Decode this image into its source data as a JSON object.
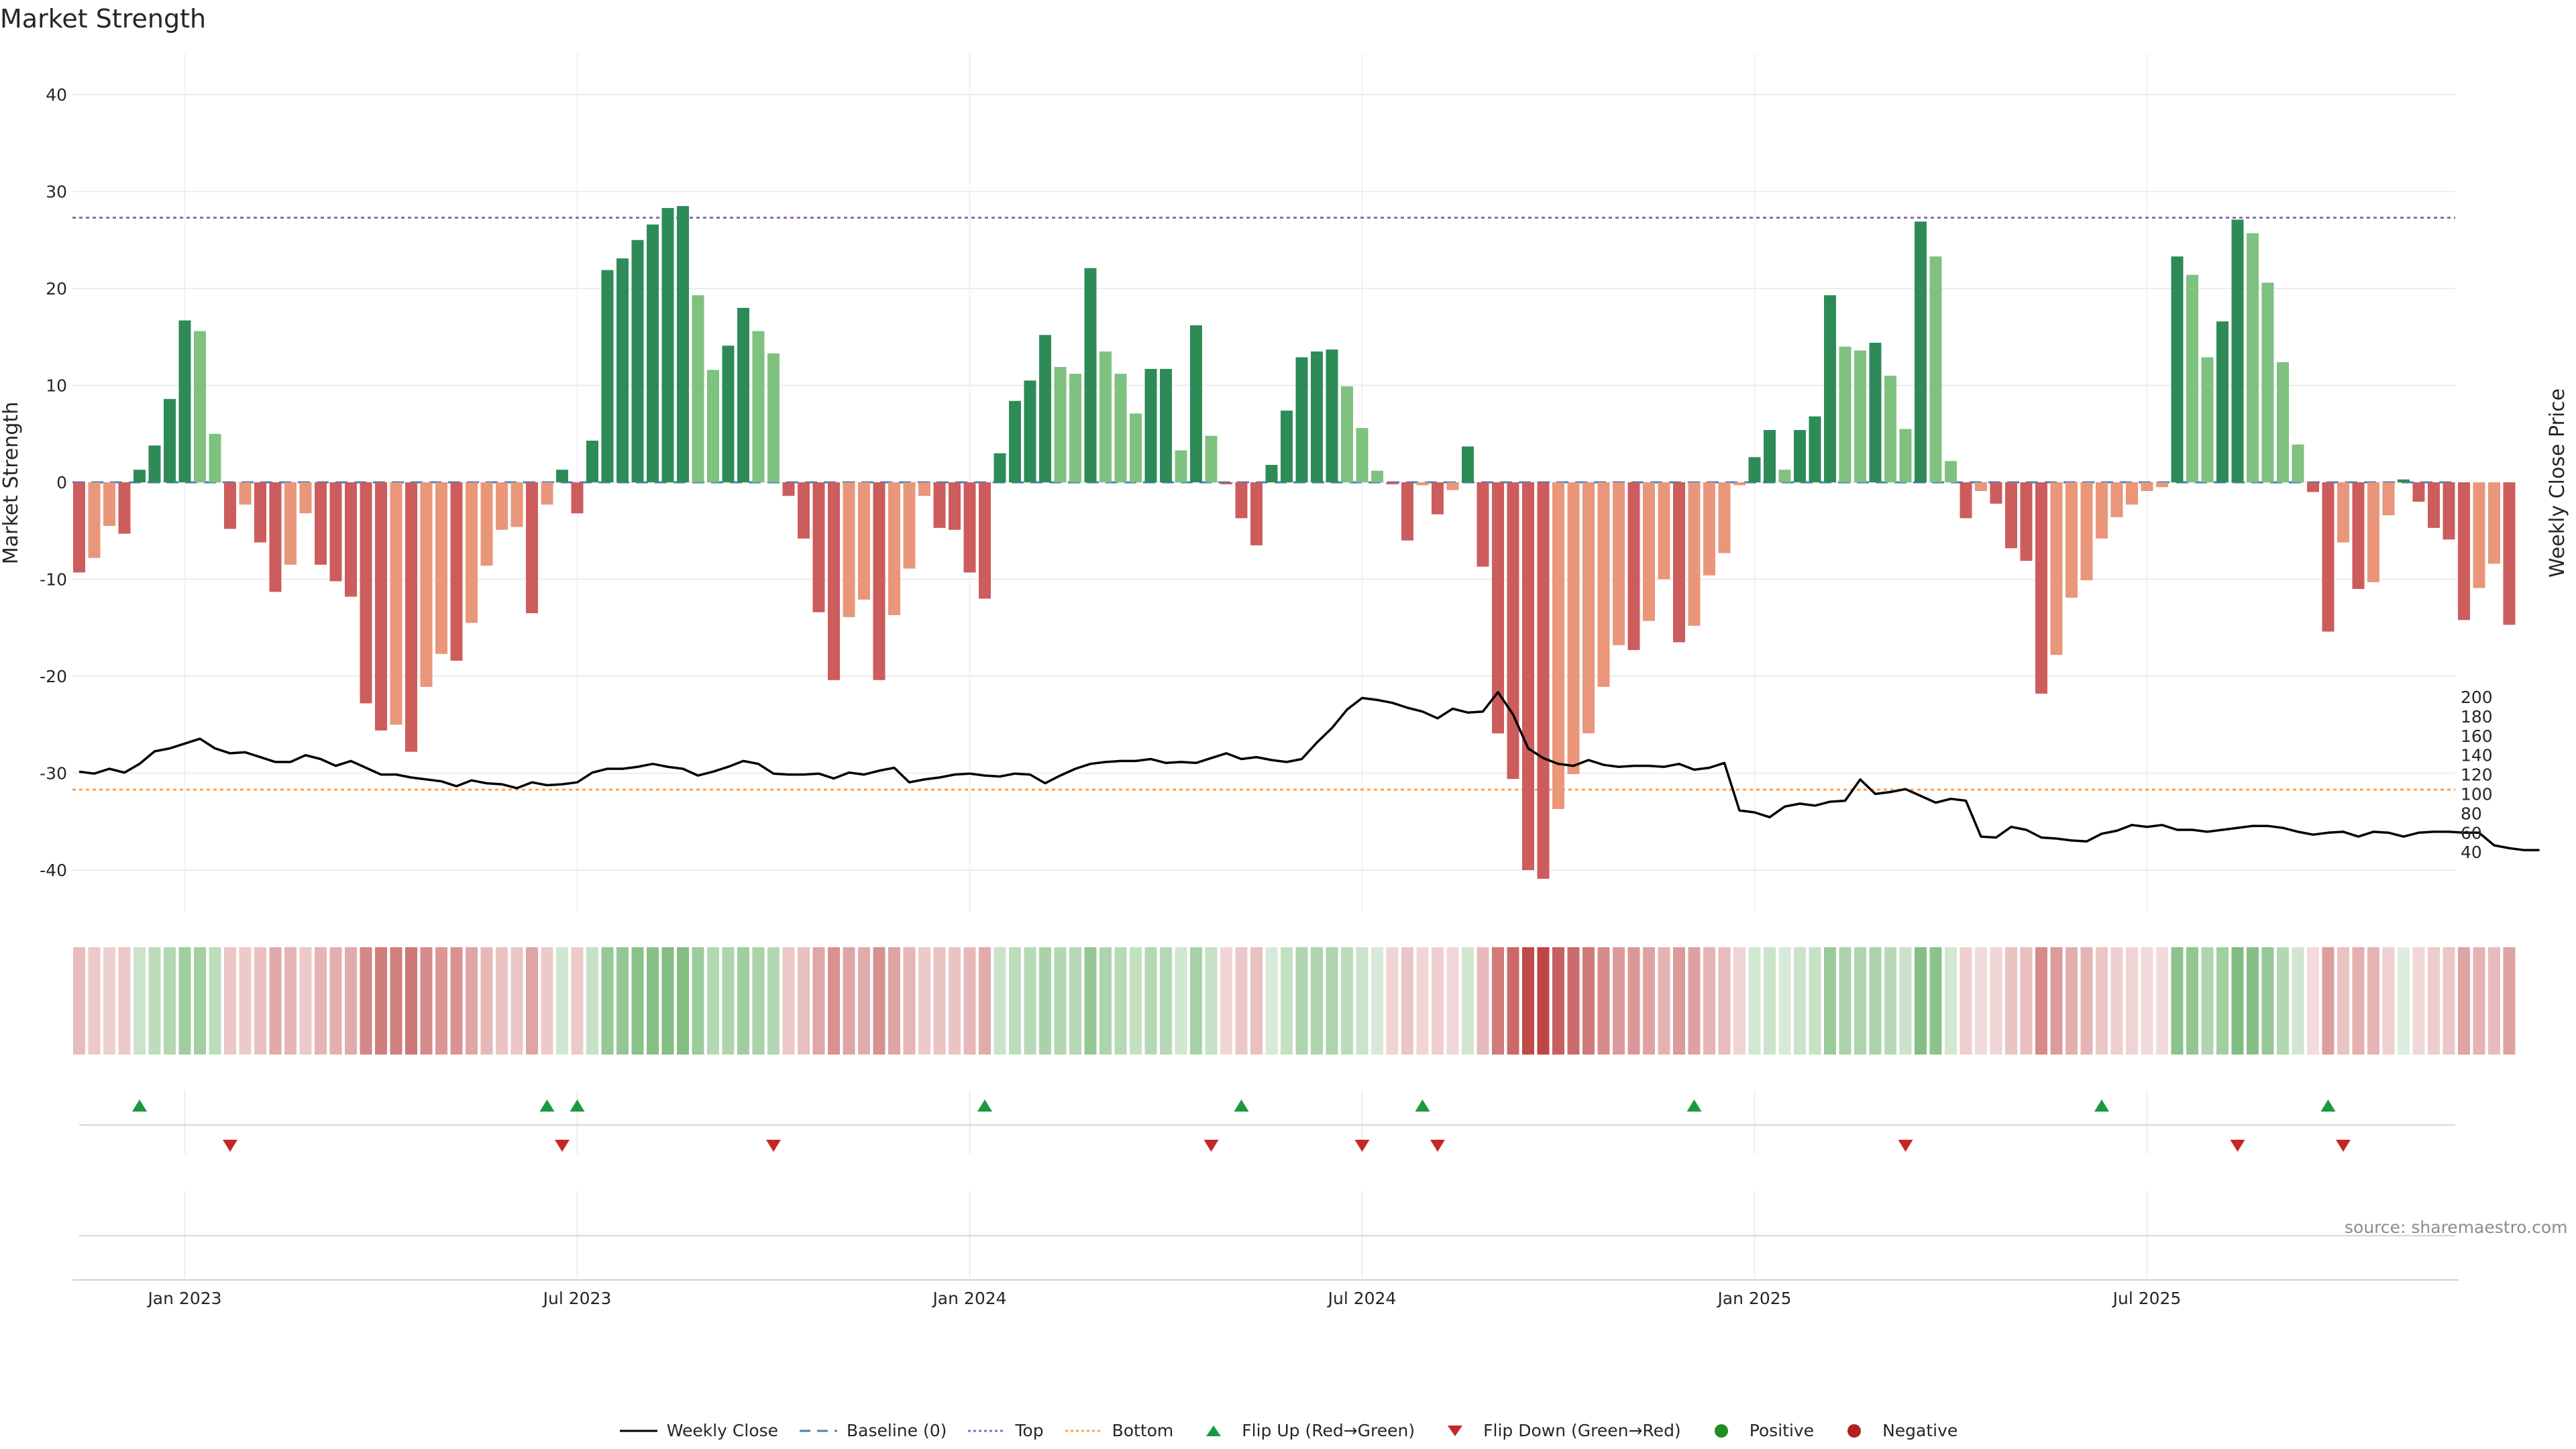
{
  "title": "Market Strength",
  "source": "source: sharemaestro.com",
  "colors": {
    "strong_green": "#2e8b57",
    "light_green": "#7fc17f",
    "strong_red": "#cd5c5c",
    "light_red": "#e9967a",
    "close_line": "#000000",
    "baseline": "#4682b4",
    "top": "#9467bd",
    "bottom": "#ff9f4a",
    "flip_up": "#1a9a3e",
    "flip_down": "#c42727",
    "positive": "#228b22",
    "negative": "#b22222"
  },
  "legend": [
    {
      "key": "close",
      "label": "Weekly Close"
    },
    {
      "key": "baseline",
      "label": "Baseline (0)"
    },
    {
      "key": "top",
      "label": "Top"
    },
    {
      "key": "bottom",
      "label": "Bottom"
    },
    {
      "key": "flip_up",
      "label": "Flip Up (Red→Green)"
    },
    {
      "key": "flip_down",
      "label": "Flip Down (Green→Red)"
    },
    {
      "key": "positive",
      "label": "Positive"
    },
    {
      "key": "negative",
      "label": "Negative"
    }
  ],
  "chart_data": {
    "type": "bar",
    "title": "Market Strength",
    "ylabel": "Market Strength",
    "y2label": "Weekly Close Price",
    "ylim": [
      -44,
      44
    ],
    "y_ticks": [
      40,
      30,
      20,
      10,
      0,
      -10,
      -20,
      -30,
      -40
    ],
    "y2lim": [
      38,
      208
    ],
    "y2_ticks": [
      200,
      180,
      160,
      140,
      120,
      100,
      80,
      60,
      40
    ],
    "x_tick_labels": [
      "Jan 2023",
      "Jul 2023",
      "Jan 2024",
      "Jul 2024",
      "Jan 2025",
      "Jul 2025"
    ],
    "x_tick_weeks": [
      7,
      33,
      59,
      85,
      111,
      137
    ],
    "top_line": 27.3,
    "bottom_line": -31.7,
    "baseline": 0,
    "series": [
      {
        "name": "Market Strength",
        "values": [
          -9.3,
          -7.8,
          -4.5,
          -5.3,
          1.3,
          3.8,
          8.6,
          16.7,
          15.6,
          5.0,
          -4.8,
          -2.3,
          -6.2,
          -11.3,
          -8.5,
          -3.2,
          -8.5,
          -10.2,
          -11.8,
          -22.8,
          -25.6,
          -25.0,
          -27.8,
          -21.1,
          -17.7,
          -18.4,
          -14.5,
          -8.6,
          -4.9,
          -4.6,
          -13.5,
          -2.3,
          1.3,
          -3.2,
          4.3,
          21.9,
          23.1,
          25.0,
          26.6,
          28.3,
          28.5,
          19.3,
          11.6,
          14.1,
          18.0,
          15.6,
          13.3,
          -1.4,
          -5.8,
          -13.4,
          -20.4,
          -13.9,
          -12.1,
          -20.4,
          -13.7,
          -8.9,
          -1.4,
          -4.7,
          -4.9,
          -9.3,
          -12.0,
          3.0,
          8.4,
          10.5,
          15.2,
          11.9,
          11.2,
          22.1,
          13.5,
          11.2,
          7.1,
          11.7,
          11.7,
          3.3,
          16.2,
          4.8,
          -0.2,
          -3.7,
          -6.5,
          1.8,
          7.4,
          12.9,
          13.5,
          13.7,
          9.9,
          5.6,
          1.2,
          -0.2,
          -6.0,
          -0.3,
          -3.3,
          -0.8,
          3.7,
          -8.7,
          -25.9,
          -30.6,
          -40.0,
          -40.9,
          -33.7,
          -30.1,
          -25.9,
          -21.1,
          -16.8,
          -17.3,
          -14.3,
          -10.0,
          -16.5,
          -14.8,
          -9.6,
          -7.3,
          -0.3,
          2.6,
          5.4,
          1.3,
          5.4,
          6.8,
          19.3,
          14.0,
          13.6,
          14.4,
          11.0,
          5.5,
          26.9,
          23.3,
          2.2,
          -3.7,
          -0.9,
          -2.2,
          -6.8,
          -8.1,
          -21.8,
          -17.8,
          -11.9,
          -10.1,
          -5.8,
          -3.6,
          -2.3,
          -0.9,
          -0.5,
          23.3,
          21.4,
          12.9,
          16.6,
          27.1,
          25.7,
          20.6,
          12.4,
          3.9,
          -1.0,
          -15.4,
          -6.2,
          -11.0,
          -10.3,
          -3.4,
          0.3,
          -2.0,
          -4.7,
          -5.9,
          -14.2,
          -10.9,
          -8.4,
          -14.7
        ]
      },
      {
        "name": "Weekly Close",
        "values": [
          123,
          121,
          126,
          122,
          131,
          144,
          147,
          152,
          157,
          147,
          142,
          143,
          138,
          133,
          133,
          140,
          136,
          129,
          134,
          127,
          120,
          120,
          117,
          115,
          113,
          108,
          114,
          111,
          110,
          106,
          112,
          109,
          110,
          112,
          122,
          126,
          126,
          128,
          131,
          128,
          126,
          119,
          123,
          128,
          134,
          131,
          121,
          120,
          120,
          121,
          116,
          122,
          120,
          124,
          127,
          112,
          115,
          117,
          120,
          121,
          119,
          118,
          121,
          120,
          111,
          119,
          126,
          131,
          133,
          134,
          134,
          136,
          132,
          133,
          132,
          137,
          142,
          136,
          138,
          135,
          133,
          136,
          153,
          168,
          187,
          199,
          197,
          194,
          189,
          185,
          178,
          188,
          184,
          185,
          205,
          182,
          147,
          137,
          131,
          129,
          135,
          130,
          128,
          129,
          129,
          128,
          131,
          125,
          127,
          132,
          83,
          81,
          76,
          87,
          90,
          88,
          92,
          93,
          115,
          100,
          102,
          105,
          98,
          91,
          95,
          93,
          56,
          55,
          66,
          63,
          55,
          54,
          52,
          51,
          59,
          62,
          68,
          66,
          68,
          63,
          63,
          61,
          63,
          65,
          67,
          67,
          65,
          61,
          58,
          60,
          61,
          56,
          61,
          60,
          56,
          60,
          61,
          61,
          60,
          60,
          47,
          44,
          42,
          42
        ],
        "y_axis": "right"
      }
    ],
    "strip_shades": [
      0.18,
      0.13,
      0.1,
      0.13,
      0.12,
      0.18,
      0.23,
      0.31,
      0.3,
      0.18,
      0.14,
      0.12,
      0.16,
      0.27,
      0.22,
      0.12,
      0.22,
      0.25,
      0.26,
      0.43,
      0.47,
      0.46,
      0.5,
      0.4,
      0.35,
      0.37,
      0.29,
      0.2,
      0.15,
      0.14,
      0.29,
      0.12,
      0.09,
      0.12,
      0.14,
      0.36,
      0.37,
      0.41,
      0.42,
      0.44,
      0.44,
      0.33,
      0.22,
      0.25,
      0.31,
      0.27,
      0.23,
      0.13,
      0.17,
      0.28,
      0.38,
      0.29,
      0.26,
      0.38,
      0.29,
      0.21,
      0.12,
      0.15,
      0.15,
      0.2,
      0.26,
      0.12,
      0.18,
      0.21,
      0.27,
      0.23,
      0.22,
      0.36,
      0.25,
      0.21,
      0.15,
      0.22,
      0.22,
      0.09,
      0.28,
      0.14,
      0.07,
      0.13,
      0.16,
      0.06,
      0.15,
      0.24,
      0.25,
      0.25,
      0.19,
      0.12,
      0.06,
      0.07,
      0.14,
      0.07,
      0.1,
      0.06,
      0.09,
      0.19,
      0.48,
      0.56,
      0.7,
      0.72,
      0.6,
      0.55,
      0.48,
      0.4,
      0.34,
      0.35,
      0.3,
      0.23,
      0.34,
      0.31,
      0.22,
      0.18,
      0.08,
      0.08,
      0.12,
      0.06,
      0.12,
      0.14,
      0.33,
      0.26,
      0.25,
      0.26,
      0.21,
      0.12,
      0.44,
      0.4,
      0.08,
      0.1,
      0.05,
      0.07,
      0.15,
      0.17,
      0.41,
      0.34,
      0.25,
      0.22,
      0.14,
      0.1,
      0.08,
      0.05,
      0.04,
      0.4,
      0.37,
      0.24,
      0.3,
      0.45,
      0.43,
      0.35,
      0.23,
      0.09,
      0.04,
      0.32,
      0.15,
      0.24,
      0.22,
      0.09,
      0.03,
      0.06,
      0.11,
      0.14,
      0.29,
      0.23,
      0.18,
      0.3
    ],
    "flip_up_weeks": [
      4,
      31,
      33,
      60,
      77,
      89,
      107,
      134,
      149
    ],
    "flip_down_weeks": [
      10,
      32,
      46,
      75,
      85,
      90,
      121,
      143,
      150
    ]
  }
}
